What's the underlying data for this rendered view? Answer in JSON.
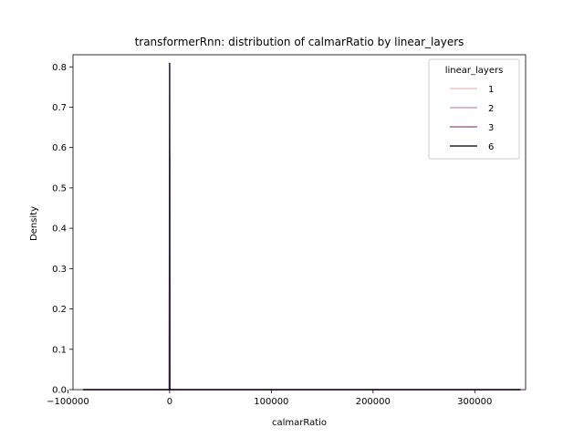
{
  "chart_data": {
    "type": "line",
    "title": "transformerRnn: distribution of calmarRatio by linear_layers",
    "xlabel": "calmarRatio",
    "ylabel": "Density",
    "xlim": [
      -95000,
      350000
    ],
    "ylim": [
      0,
      0.83
    ],
    "xticks": [
      -100000,
      0,
      100000,
      200000,
      300000
    ],
    "xtick_labels": [
      "−100000",
      "0",
      "100000",
      "200000",
      "300000"
    ],
    "yticks": [
      0,
      0.1,
      0.2,
      0.3,
      0.4,
      0.5,
      0.6,
      0.7,
      0.8
    ],
    "ytick_labels": [
      "0.0",
      "0.1",
      "0.2",
      "0.3",
      "0.4",
      "0.5",
      "0.6",
      "0.7",
      "0.8"
    ],
    "grid": false,
    "legend": {
      "title": "linear_layers",
      "placement": "top-right"
    },
    "series": [
      {
        "name": "1",
        "color": "#efc3c6",
        "x": [
          -85000,
          -200,
          0,
          200,
          345000
        ],
        "y": [
          0,
          0,
          0.52,
          0,
          0
        ]
      },
      {
        "name": "2",
        "color": "#d8a0ab",
        "x": [
          -85000,
          -200,
          0,
          200,
          345000
        ],
        "y": [
          0,
          0,
          0.6,
          0,
          0
        ]
      },
      {
        "name": "3",
        "color": "#a66a8a",
        "x": [
          -85000,
          -200,
          0,
          200,
          345000
        ],
        "y": [
          0,
          0,
          0.58,
          0,
          0
        ]
      },
      {
        "name": "6",
        "color": "#2b1f45",
        "x": [
          -85000,
          -200,
          0,
          200,
          345000
        ],
        "y": [
          0,
          0,
          0.81,
          0,
          0
        ]
      }
    ]
  }
}
